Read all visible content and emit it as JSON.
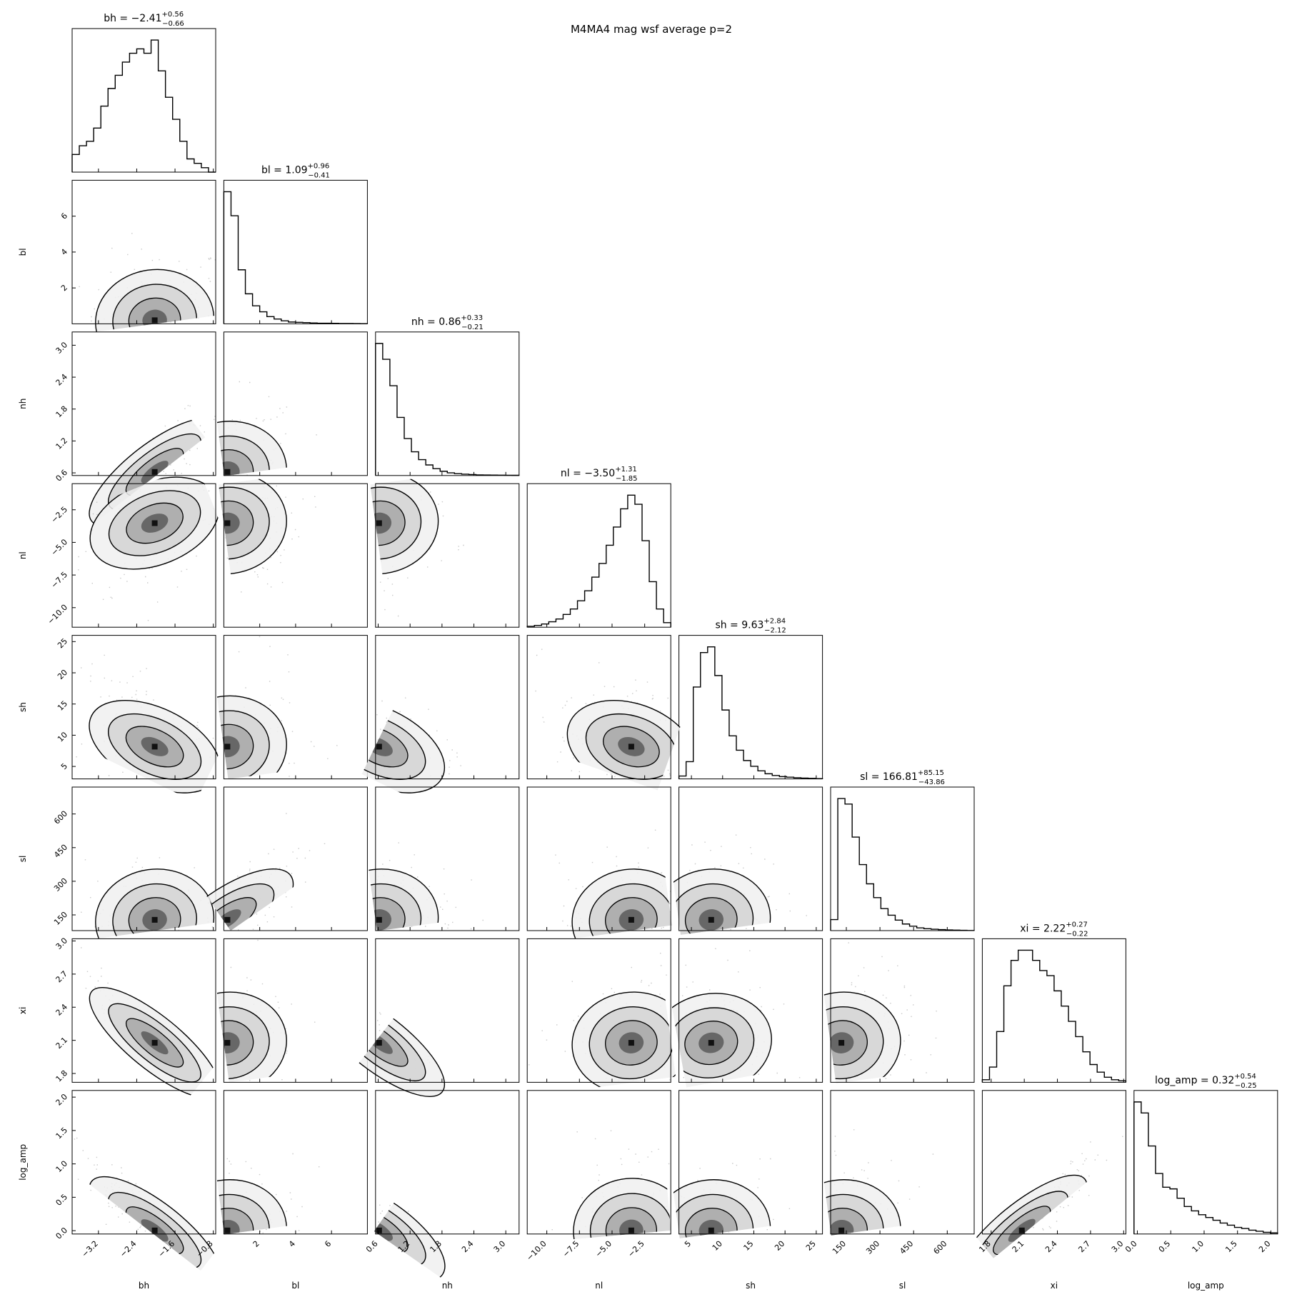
{
  "figure_title": "M4MA4 mag wsf average p=2",
  "chart_data": {
    "type": "corner",
    "title": "M4MA4 mag wsf average p=2",
    "parameters": [
      {
        "name": "bh",
        "median": "−2.41",
        "plus": "+0.56",
        "minus": "−0.66",
        "range": [
          -3.75,
          -0.75
        ],
        "ticks": [
          -3.2,
          -2.4,
          -1.6,
          -0.8
        ],
        "tick_labels": [
          "−3.2",
          "−2.4",
          "−1.6",
          "−0.8"
        ]
      },
      {
        "name": "bl",
        "median": "1.09",
        "plus": "+0.96",
        "minus": "−0.41",
        "range": [
          0,
          8
        ],
        "ticks": [
          2,
          4,
          6
        ],
        "tick_labels": [
          "2",
          "4",
          "6"
        ]
      },
      {
        "name": "nh",
        "median": "0.86",
        "plus": "+0.33",
        "minus": "−0.21",
        "range": [
          0.55,
          3.25
        ],
        "ticks": [
          0.6,
          1.2,
          1.8,
          2.4,
          3.0
        ],
        "tick_labels": [
          "0.6",
          "1.2",
          "1.8",
          "2.4",
          "3.0"
        ]
      },
      {
        "name": "nl",
        "median": "−3.50",
        "plus": "+1.31",
        "minus": "−1.85",
        "range": [
          -11.5,
          -0.5
        ],
        "ticks": [
          -10.0,
          -7.5,
          -5.0,
          -2.5
        ],
        "tick_labels": [
          "−10.0",
          "−7.5",
          "−5.0",
          "−2.5"
        ]
      },
      {
        "name": "sh",
        "median": "9.63",
        "plus": "+2.84",
        "minus": "−2.12",
        "range": [
          3,
          26
        ],
        "ticks": [
          5,
          10,
          15,
          20,
          25
        ],
        "tick_labels": [
          "5",
          "10",
          "15",
          "20",
          "25"
        ]
      },
      {
        "name": "sl",
        "median": "166.81",
        "plus": "+85.15",
        "minus": "−43.86",
        "range": [
          80,
          720
        ],
        "ticks": [
          150,
          300,
          450,
          600
        ],
        "tick_labels": [
          "150",
          "300",
          "450",
          "600"
        ]
      },
      {
        "name": "xi",
        "median": "2.22",
        "plus": "+0.27",
        "minus": "−0.22",
        "range": [
          1.72,
          3.02
        ],
        "ticks": [
          1.8,
          2.1,
          2.4,
          2.7,
          3.0
        ],
        "tick_labels": [
          "1.8",
          "2.1",
          "2.4",
          "2.7",
          "3.0"
        ]
      },
      {
        "name": "log_amp",
        "median": "0.32",
        "plus": "+0.54",
        "minus": "−0.25",
        "range": [
          -0.05,
          2.1
        ],
        "ticks": [
          0.0,
          0.5,
          1.0,
          1.5,
          2.0
        ],
        "tick_labels": [
          "0.0",
          "0.5",
          "1.0",
          "1.5",
          "2.0"
        ]
      }
    ],
    "histograms": [
      [
        4,
        6,
        7,
        10,
        15,
        19,
        22,
        25,
        27,
        28,
        27,
        30,
        23,
        17,
        12,
        7,
        3,
        2,
        1,
        0
      ],
      [
        22,
        18,
        9,
        5,
        3,
        2,
        1.2,
        0.8,
        0.5,
        0.3,
        0.25,
        0.2,
        0.15,
        0.1,
        0.1,
        0.08,
        0.06,
        0.05,
        0.04,
        0.03
      ],
      [
        25,
        22,
        17,
        11,
        7,
        4.5,
        3,
        2,
        1.3,
        0.8,
        0.5,
        0.35,
        0.25,
        0.18,
        0.12,
        0.1,
        0.08,
        0.06,
        0.05,
        0.04
      ],
      [
        0.2,
        0.4,
        0.7,
        1.2,
        1.8,
        2.8,
        4,
        5.8,
        8,
        11,
        14,
        18,
        22,
        26,
        29,
        27,
        19,
        10,
        4,
        1
      ],
      [
        0.5,
        3,
        16,
        22,
        23,
        18,
        12,
        7.5,
        5,
        3.2,
        2.2,
        1.4,
        0.9,
        0.6,
        0.4,
        0.3,
        0.2,
        0.15,
        0.1,
        0.05
      ],
      [
        2,
        24,
        23,
        17,
        12,
        8.5,
        6,
        4,
        2.8,
        1.9,
        1.2,
        0.8,
        0.5,
        0.35,
        0.25,
        0.18,
        0.12,
        0.08,
        0.05,
        0.03
      ],
      [
        0.5,
        3,
        10,
        19,
        24,
        26,
        26,
        24,
        22,
        21,
        18,
        15,
        12,
        9,
        6,
        3.5,
        2,
        1,
        0.5,
        0.3
      ],
      [
        24,
        22,
        16,
        11,
        8.5,
        8.2,
        6.5,
        5,
        4.2,
        3.5,
        3,
        2.5,
        2,
        1.6,
        1.2,
        1,
        0.7,
        0.5,
        0.3,
        0.2
      ]
    ]
  }
}
